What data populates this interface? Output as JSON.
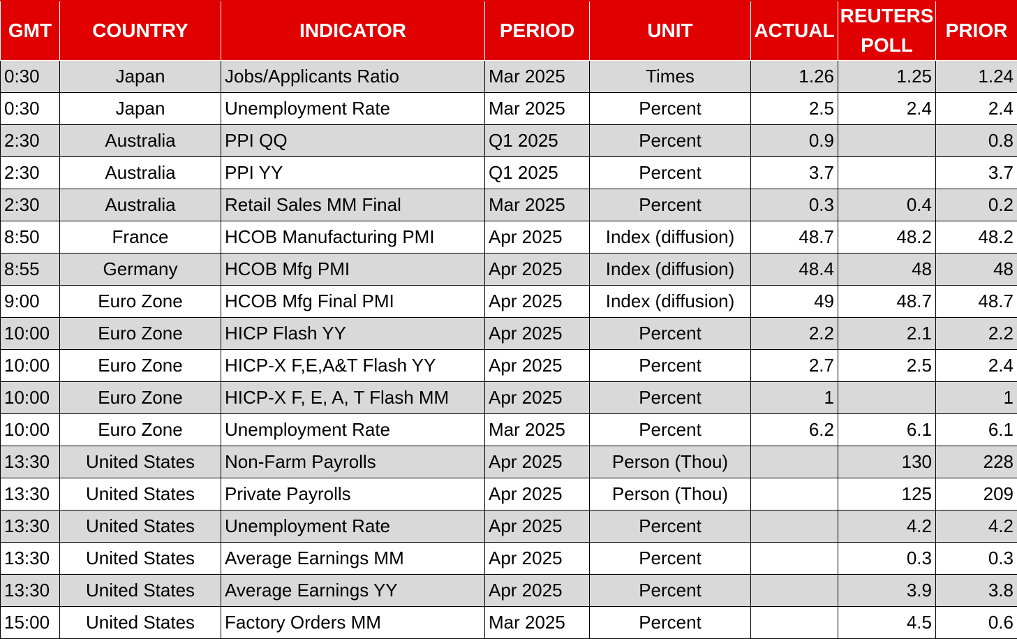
{
  "table": {
    "headers": [
      "GMT",
      "COUNTRY",
      "INDICATOR",
      "PERIOD",
      "UNIT",
      "ACTUAL",
      "REUTERS POLL",
      "PRIOR"
    ],
    "rows": [
      [
        "0:30",
        "Japan",
        "Jobs/Applicants Ratio",
        "Mar 2025",
        "Times",
        "1.26",
        "1.25",
        "1.24"
      ],
      [
        "0:30",
        "Japan",
        "Unemployment Rate",
        "Mar 2025",
        "Percent",
        "2.5",
        "2.4",
        "2.4"
      ],
      [
        "2:30",
        "Australia",
        "PPI QQ",
        "Q1 2025",
        "Percent",
        "0.9",
        "",
        "0.8"
      ],
      [
        "2:30",
        "Australia",
        "PPI YY",
        "Q1 2025",
        "Percent",
        "3.7",
        "",
        "3.7"
      ],
      [
        "2:30",
        "Australia",
        "Retail Sales MM Final",
        "Mar 2025",
        "Percent",
        "0.3",
        "0.4",
        "0.2"
      ],
      [
        "8:50",
        "France",
        "HCOB Manufacturing PMI",
        "Apr 2025",
        "Index (diffusion)",
        "48.7",
        "48.2",
        "48.2"
      ],
      [
        "8:55",
        "Germany",
        "HCOB Mfg PMI",
        "Apr 2025",
        "Index (diffusion)",
        "48.4",
        "48",
        "48"
      ],
      [
        "9:00",
        "Euro Zone",
        "HCOB Mfg Final PMI",
        "Apr 2025",
        "Index (diffusion)",
        "49",
        "48.7",
        "48.7"
      ],
      [
        "10:00",
        "Euro Zone",
        "HICP Flash YY",
        "Apr 2025",
        "Percent",
        "2.2",
        "2.1",
        "2.2"
      ],
      [
        "10:00",
        "Euro Zone",
        "HICP-X F,E,A&T Flash YY",
        "Apr 2025",
        "Percent",
        "2.7",
        "2.5",
        "2.4"
      ],
      [
        "10:00",
        "Euro Zone",
        "HICP-X F, E, A, T Flash MM",
        "Apr 2025",
        "Percent",
        "1",
        "",
        "1"
      ],
      [
        "10:00",
        "Euro Zone",
        "Unemployment Rate",
        "Mar 2025",
        "Percent",
        "6.2",
        "6.1",
        "6.1"
      ],
      [
        "13:30",
        "United States",
        "Non-Farm Payrolls",
        "Apr 2025",
        "Person (Thou)",
        "",
        "130",
        "228"
      ],
      [
        "13:30",
        "United States",
        "Private Payrolls",
        "Apr 2025",
        "Person (Thou)",
        "",
        "125",
        "209"
      ],
      [
        "13:30",
        "United States",
        "Unemployment Rate",
        "Apr 2025",
        "Percent",
        "",
        "4.2",
        "4.2"
      ],
      [
        "13:30",
        "United States",
        "Average Earnings MM",
        "Apr 2025",
        "Percent",
        "",
        "0.3",
        "0.3"
      ],
      [
        "13:30",
        "United States",
        "Average Earnings YY",
        "Apr 2025",
        "Percent",
        "",
        "3.9",
        "3.8"
      ],
      [
        "15:00",
        "United States",
        "Factory Orders MM",
        "Mar 2025",
        "Percent",
        "",
        "4.5",
        "0.6"
      ]
    ]
  },
  "colors": {
    "header_bg": "#e00000",
    "header_text": "#ffffff",
    "row_shaded": "#d9d9d9",
    "row_plain": "#ffffff"
  }
}
